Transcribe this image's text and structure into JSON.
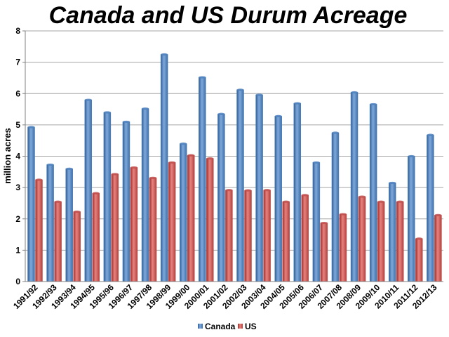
{
  "chart_data": {
    "type": "bar",
    "title": "Canada and US Durum Acreage",
    "xlabel": "",
    "ylabel": "million acres",
    "ylim": [
      0,
      8
    ],
    "yticks": [
      0,
      1,
      2,
      3,
      4,
      5,
      6,
      7,
      8
    ],
    "grid": true,
    "legend_position": "bottom",
    "categories": [
      "1991/92",
      "1992/93",
      "1993/94",
      "1994/95",
      "1995/96",
      "1996/97",
      "1997/98",
      "1998/99",
      "1999/00",
      "2000/01",
      "2001/02",
      "2002/03",
      "2003/04",
      "2004/05",
      "2005/06",
      "2006/07",
      "2007/08",
      "2008/09",
      "2009/10",
      "2010/11",
      "2011/12",
      "2012/13"
    ],
    "series": [
      {
        "name": "Canada",
        "color": "#4f81bd",
        "values": [
          4.93,
          3.73,
          3.6,
          5.8,
          5.4,
          5.1,
          5.52,
          7.25,
          4.4,
          6.52,
          5.35,
          6.12,
          5.96,
          5.28,
          5.69,
          3.8,
          4.75,
          6.04,
          5.66,
          3.15,
          4.0,
          4.68
        ]
      },
      {
        "name": "US",
        "color": "#c0504d",
        "values": [
          3.25,
          2.55,
          2.23,
          2.82,
          3.43,
          3.64,
          3.31,
          3.8,
          4.03,
          3.93,
          2.92,
          2.91,
          2.92,
          2.55,
          2.76,
          1.87,
          2.15,
          2.71,
          2.55,
          2.55,
          1.37,
          2.12
        ]
      }
    ]
  }
}
